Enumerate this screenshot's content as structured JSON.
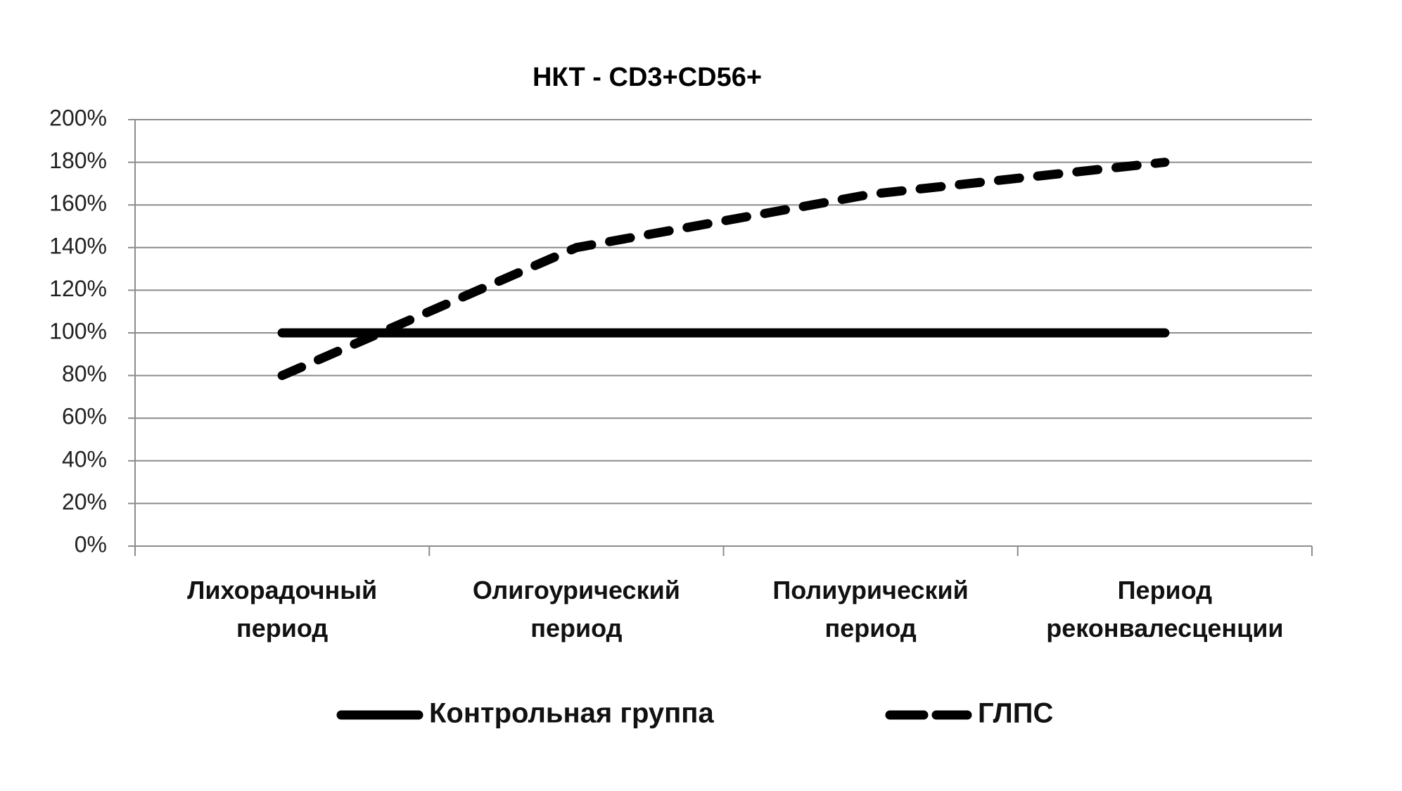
{
  "chart_data": {
    "type": "line",
    "title": "НКТ - CD3+CD56+",
    "categories": [
      "Лихорадочный период",
      "Олигоурический период",
      "Полиурический период",
      "Период реконвалесценции"
    ],
    "series": [
      {
        "name": "Контрольная группа",
        "color": "#000000",
        "line_style": "solid",
        "values": [
          100,
          100,
          100,
          100
        ]
      },
      {
        "name": "ГЛПС",
        "color": "#000000",
        "line_style": "dashed",
        "values": [
          80,
          140,
          165,
          180
        ]
      }
    ],
    "ylim": [
      0,
      200
    ],
    "yticks": [
      {
        "value": 0,
        "label": "0%"
      },
      {
        "value": 20,
        "label": "20%"
      },
      {
        "value": 40,
        "label": "40%"
      },
      {
        "value": 60,
        "label": "60%"
      },
      {
        "value": 80,
        "label": "80%"
      },
      {
        "value": 100,
        "label": "100%"
      },
      {
        "value": 120,
        "label": "120%"
      },
      {
        "value": 140,
        "label": "140%"
      },
      {
        "value": 160,
        "label": "160%"
      },
      {
        "value": 180,
        "label": "180%"
      },
      {
        "value": 200,
        "label": "200%"
      }
    ],
    "grid": true,
    "legend": "bottom"
  }
}
